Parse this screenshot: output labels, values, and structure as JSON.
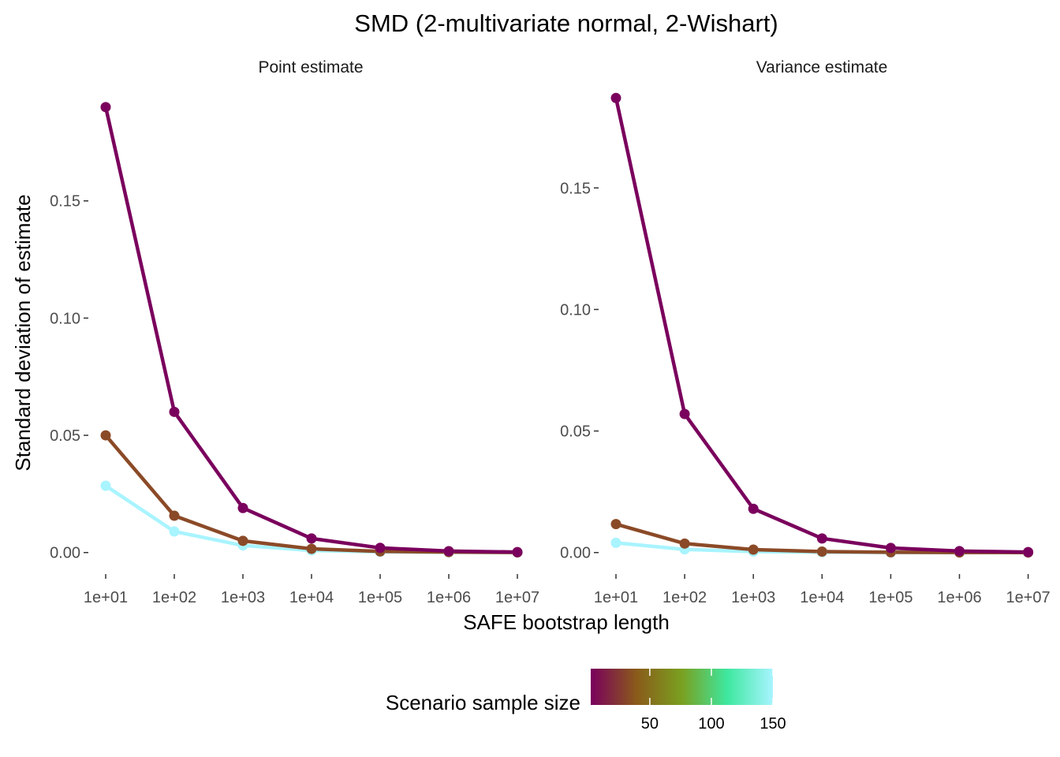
{
  "chart_data": {
    "type": "line",
    "title": "SMD (2-multivariate normal, 2-Wishart)",
    "xlabel": "SAFE bootstrap length",
    "ylabel": "Standard deviation of estimate",
    "x_scale": "log10",
    "x": [
      10,
      100,
      1000,
      10000,
      100000,
      1000000,
      10000000
    ],
    "x_tick_labels": [
      "1e+01",
      "1e+02",
      "1e+03",
      "1e+04",
      "1e+05",
      "1e+06",
      "1e+07"
    ],
    "y_tick_labels": [
      "0.00",
      "0.05",
      "0.10",
      "0.15"
    ],
    "y_ticks": [
      0,
      0.05,
      0.1,
      0.15
    ],
    "grid": false,
    "legend": {
      "title": "Scenario sample size",
      "position": "bottom",
      "type": "colorbar",
      "range": [
        2,
        150
      ],
      "tick_labels": [
        "50",
        "100",
        "150"
      ],
      "tick_values": [
        50,
        100,
        150
      ],
      "colors": [
        "#7a005d",
        "#8a5a1a",
        "#7aa020",
        "#3ee8a0",
        "#a8f4ff"
      ]
    },
    "panels": [
      {
        "label": "Point estimate",
        "ylim": [
          -0.0085,
          0.197
        ],
        "series": [
          {
            "sample_size": 2,
            "color": "#7a005d",
            "values": [
              0.19,
              0.06,
              0.019,
              0.006,
              0.002,
              0.0006,
              0.0002
            ]
          },
          {
            "sample_size": 50,
            "color": "#8b4a27",
            "values": [
              0.05,
              0.0157,
              0.005,
              0.0016,
              0.0005,
              0.0002,
              5e-05
            ]
          },
          {
            "sample_size": 150,
            "color": "#a8f4ff",
            "values": [
              0.0285,
              0.009,
              0.003,
              0.0009,
              0.0003,
              0.0001,
              3e-05
            ]
          }
        ]
      },
      {
        "label": "Variance estimate",
        "ylim": [
          -0.0082,
          0.19
        ],
        "series": [
          {
            "sample_size": 2,
            "color": "#7a005d",
            "values": [
              0.187,
              0.057,
              0.018,
              0.0058,
              0.0019,
              0.0006,
              0.0002
            ]
          },
          {
            "sample_size": 50,
            "color": "#8b4a27",
            "values": [
              0.0117,
              0.0037,
              0.0012,
              0.0004,
              0.00012,
              4e-05,
              1e-05
            ]
          },
          {
            "sample_size": 150,
            "color": "#a8f4ff",
            "values": [
              0.004,
              0.0013,
              0.0004,
              0.00013,
              4e-05,
              1e-05,
              4e-06
            ]
          }
        ]
      }
    ]
  }
}
